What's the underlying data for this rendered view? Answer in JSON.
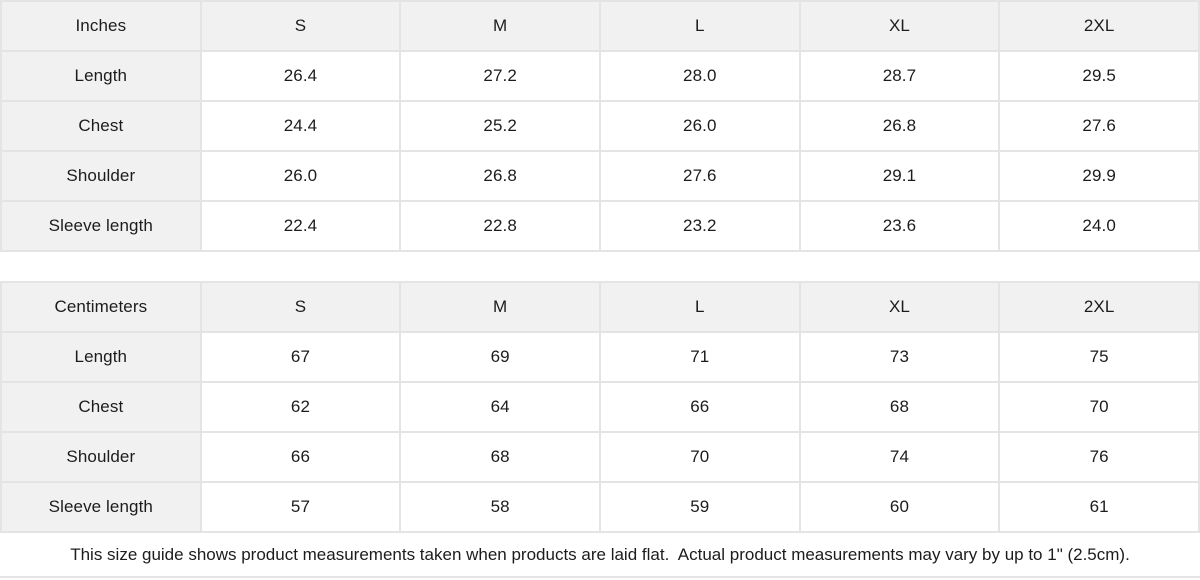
{
  "tables": [
    {
      "unit_label": "Inches",
      "sizes": [
        "S",
        "M",
        "L",
        "XL",
        "2XL"
      ],
      "rows": [
        {
          "label": "Length",
          "values": [
            "26.4",
            "27.2",
            "28.0",
            "28.7",
            "29.5"
          ]
        },
        {
          "label": "Chest",
          "values": [
            "24.4",
            "25.2",
            "26.0",
            "26.8",
            "27.6"
          ]
        },
        {
          "label": "Shoulder",
          "values": [
            "26.0",
            "26.8",
            "27.6",
            "29.1",
            "29.9"
          ]
        },
        {
          "label": "Sleeve length",
          "values": [
            "22.4",
            "22.8",
            "23.2",
            "23.6",
            "24.0"
          ]
        }
      ]
    },
    {
      "unit_label": "Centimeters",
      "sizes": [
        "S",
        "M",
        "L",
        "XL",
        "2XL"
      ],
      "rows": [
        {
          "label": "Length",
          "values": [
            "67",
            "69",
            "71",
            "73",
            "75"
          ]
        },
        {
          "label": "Chest",
          "values": [
            "62",
            "64",
            "66",
            "68",
            "70"
          ]
        },
        {
          "label": "Shoulder",
          "values": [
            "66",
            "68",
            "70",
            "74",
            "76"
          ]
        },
        {
          "label": "Sleeve length",
          "values": [
            "57",
            "58",
            "59",
            "60",
            "61"
          ]
        }
      ]
    }
  ],
  "footer": {
    "note": "This size guide shows product measurements taken when products are laid flat.  Actual product measurements may vary by up to 1\" (2.5cm)."
  },
  "colors": {
    "header_cell_bg": "#f0f1f0",
    "border": "#e4e4e4",
    "text": "#1c1c1c",
    "page_bg": "#ffffff"
  }
}
